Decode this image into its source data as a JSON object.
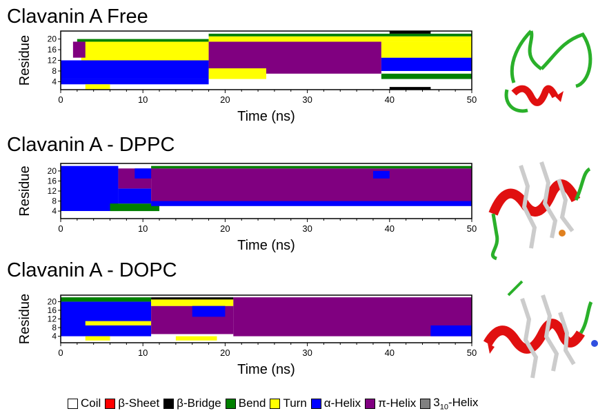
{
  "structure_colors": {
    "Coil": "#ffffff",
    "β-Sheet": "#ff0000",
    "β-Bridge": "#000000",
    "Bend": "#008000",
    "Turn": "#ffff00",
    "α-Helix": "#0000ff",
    "π-Helix": "#800080",
    "3-10-Helix": "#808080"
  },
  "legend": [
    {
      "label": "Coil",
      "sub": "",
      "label_after": "",
      "color": "#ffffff"
    },
    {
      "label": "β-Sheet",
      "sub": "",
      "label_after": "",
      "color": "#ff0000"
    },
    {
      "label": "β-Bridge",
      "sub": "",
      "label_after": "",
      "color": "#000000"
    },
    {
      "label": "Bend",
      "sub": "",
      "label_after": "",
      "color": "#008000"
    },
    {
      "label": "Turn",
      "sub": "",
      "label_after": "",
      "color": "#ffff00"
    },
    {
      "label": "α-Helix",
      "sub": "",
      "label_after": "",
      "color": "#0000ff"
    },
    {
      "label": "π-Helix",
      "sub": "",
      "label_after": "",
      "color": "#800080"
    },
    {
      "label": "3",
      "sub": "10",
      "label_after": "-Helix",
      "color": "#808080"
    }
  ],
  "chart_data": [
    {
      "type": "heatmap",
      "title": "Clavanin A Free",
      "xlabel": "Time (ns)",
      "ylabel": "Residue",
      "xlim": [
        0,
        50
      ],
      "ylim": [
        1,
        23
      ],
      "x_ticks": [
        0,
        10,
        20,
        30,
        40,
        50
      ],
      "y_ticks": [
        4,
        8,
        12,
        16,
        20
      ],
      "grid": false,
      "segments": [
        {
          "t": [
            0,
            18
          ],
          "res": [
            3,
            5
          ],
          "state": "α-Helix"
        },
        {
          "t": [
            0,
            18
          ],
          "res": [
            5,
            12
          ],
          "state": "α-Helix"
        },
        {
          "t": [
            2.5,
            18
          ],
          "res": [
            12,
            19
          ],
          "state": "Turn"
        },
        {
          "t": [
            1.5,
            3
          ],
          "res": [
            13,
            19
          ],
          "state": "π-Helix"
        },
        {
          "t": [
            2,
            18
          ],
          "res": [
            19,
            20
          ],
          "state": "Bend"
        },
        {
          "t": [
            3,
            6
          ],
          "res": [
            1,
            3
          ],
          "state": "Turn"
        },
        {
          "t": [
            18,
            39
          ],
          "res": [
            7,
            19
          ],
          "state": "π-Helix"
        },
        {
          "t": [
            18,
            25
          ],
          "res": [
            5,
            9
          ],
          "state": "Turn"
        },
        {
          "t": [
            18,
            50
          ],
          "res": [
            19,
            21
          ],
          "state": "Turn"
        },
        {
          "t": [
            18,
            50
          ],
          "res": [
            21,
            22
          ],
          "state": "Bend"
        },
        {
          "t": [
            39,
            50
          ],
          "res": [
            8,
            13
          ],
          "state": "α-Helix"
        },
        {
          "t": [
            39,
            50
          ],
          "res": [
            13,
            19
          ],
          "state": "Turn"
        },
        {
          "t": [
            39,
            50
          ],
          "res": [
            5,
            7
          ],
          "state": "Bend"
        },
        {
          "t": [
            40,
            45
          ],
          "res": [
            1,
            2
          ],
          "state": "β-Bridge"
        },
        {
          "t": [
            40,
            45
          ],
          "res": [
            22,
            23
          ],
          "state": "β-Bridge"
        }
      ]
    },
    {
      "type": "heatmap",
      "title": "Clavanin A - DPPC",
      "xlabel": "Time (ns)",
      "ylabel": "Residue",
      "xlim": [
        0,
        50
      ],
      "ylim": [
        1,
        23
      ],
      "x_ticks": [
        0,
        10,
        20,
        30,
        40,
        50
      ],
      "y_ticks": [
        4,
        8,
        12,
        16,
        20
      ],
      "grid": false,
      "segments": [
        {
          "t": [
            0,
            7
          ],
          "res": [
            4,
            22
          ],
          "state": "α-Helix"
        },
        {
          "t": [
            0,
            9
          ],
          "res": [
            2,
            4
          ],
          "state": "Coil"
        },
        {
          "t": [
            6,
            12
          ],
          "res": [
            4,
            7
          ],
          "state": "Bend"
        },
        {
          "t": [
            7,
            11
          ],
          "res": [
            7,
            13
          ],
          "state": "α-Helix"
        },
        {
          "t": [
            7,
            11
          ],
          "res": [
            13,
            21
          ],
          "state": "π-Helix"
        },
        {
          "t": [
            9,
            12
          ],
          "res": [
            17,
            21
          ],
          "state": "α-Helix"
        },
        {
          "t": [
            11,
            50
          ],
          "res": [
            7,
            21
          ],
          "state": "π-Helix"
        },
        {
          "t": [
            11,
            50
          ],
          "res": [
            6,
            8
          ],
          "state": "α-Helix"
        },
        {
          "t": [
            11,
            50
          ],
          "res": [
            21,
            22
          ],
          "state": "Bend"
        },
        {
          "t": [
            38,
            40
          ],
          "res": [
            17,
            20
          ],
          "state": "α-Helix"
        }
      ]
    },
    {
      "type": "heatmap",
      "title": "Clavanin A - DOPC",
      "xlabel": "Time (ns)",
      "ylabel": "Residue",
      "xlim": [
        0,
        50
      ],
      "ylim": [
        1,
        23
      ],
      "x_ticks": [
        0,
        10,
        20,
        30,
        40,
        50
      ],
      "y_ticks": [
        4,
        8,
        12,
        16,
        20
      ],
      "grid": false,
      "segments": [
        {
          "t": [
            0,
            11
          ],
          "res": [
            4,
            20
          ],
          "state": "α-Helix"
        },
        {
          "t": [
            0,
            11
          ],
          "res": [
            20,
            22
          ],
          "state": "Bend"
        },
        {
          "t": [
            3,
            11
          ],
          "res": [
            9,
            11
          ],
          "state": "Turn"
        },
        {
          "t": [
            3,
            6
          ],
          "res": [
            2,
            4
          ],
          "state": "Turn"
        },
        {
          "t": [
            11,
            21
          ],
          "res": [
            5,
            18
          ],
          "state": "π-Helix"
        },
        {
          "t": [
            11,
            21
          ],
          "res": [
            18,
            21
          ],
          "state": "Turn"
        },
        {
          "t": [
            11,
            21
          ],
          "res": [
            21,
            22
          ],
          "state": "β-Bridge"
        },
        {
          "t": [
            14,
            19
          ],
          "res": [
            2,
            4
          ],
          "state": "Turn"
        },
        {
          "t": [
            16,
            20
          ],
          "res": [
            13,
            18
          ],
          "state": "α-Helix"
        },
        {
          "t": [
            21,
            50
          ],
          "res": [
            4,
            22
          ],
          "state": "π-Helix"
        },
        {
          "t": [
            45,
            50
          ],
          "res": [
            4,
            9
          ],
          "state": "α-Helix"
        },
        {
          "t": [
            0,
            50
          ],
          "res": [
            1,
            2
          ],
          "state": "Coil"
        }
      ]
    }
  ]
}
